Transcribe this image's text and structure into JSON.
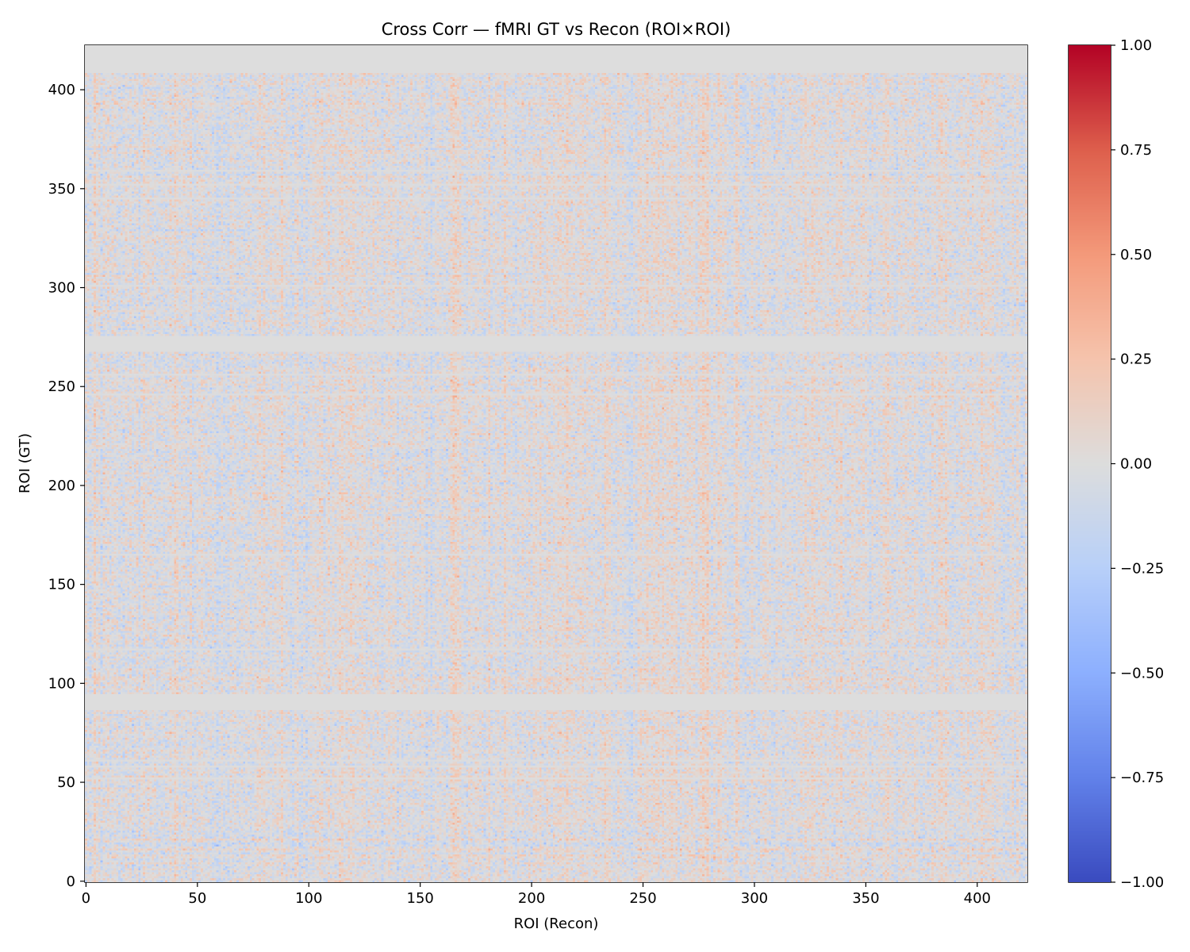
{
  "chart_data": {
    "type": "heatmap",
    "title": "Cross Corr — fMRI GT vs Recon (ROI×ROI)",
    "xlabel": "ROI (Recon)",
    "ylabel": "ROI (GT)",
    "n_x": 423,
    "n_y": 423,
    "xlim": [
      -0.5,
      422.5
    ],
    "ylim": [
      -0.5,
      422.5
    ],
    "y_origin": "lower",
    "x_ticks": [
      0,
      50,
      100,
      150,
      200,
      250,
      300,
      350,
      400
    ],
    "x_tick_labels": [
      "0",
      "50",
      "100",
      "150",
      "200",
      "250",
      "300",
      "350",
      "400"
    ],
    "y_ticks": [
      0,
      50,
      100,
      150,
      200,
      250,
      300,
      350,
      400
    ],
    "y_tick_labels": [
      "0",
      "50",
      "100",
      "150",
      "200",
      "250",
      "300",
      "350",
      "400"
    ],
    "colormap": "coolwarm",
    "vmin": -1.0,
    "vmax": 1.0,
    "colorbar_ticks": [
      1.0,
      0.75,
      0.5,
      0.25,
      0.0,
      -0.25,
      -0.5,
      -0.75,
      -1.0
    ],
    "colorbar_tick_labels": [
      "1.00",
      "0.75",
      "0.50",
      "0.25",
      "0.00",
      "−0.25",
      "−0.50",
      "−0.75",
      "−1.00"
    ],
    "zero_rows": [
      [
        87,
        94
      ],
      [
        268,
        275
      ],
      [
        409,
        422
      ]
    ],
    "faint_rows": [
      52,
      58,
      61,
      117,
      165,
      246,
      256,
      301,
      345,
      352,
      359
    ],
    "value_range_typical": [
      -0.55,
      0.6
    ],
    "hot_columns": [
      166,
      277,
      385
    ],
    "missing_value_color": "#dddcdc"
  }
}
